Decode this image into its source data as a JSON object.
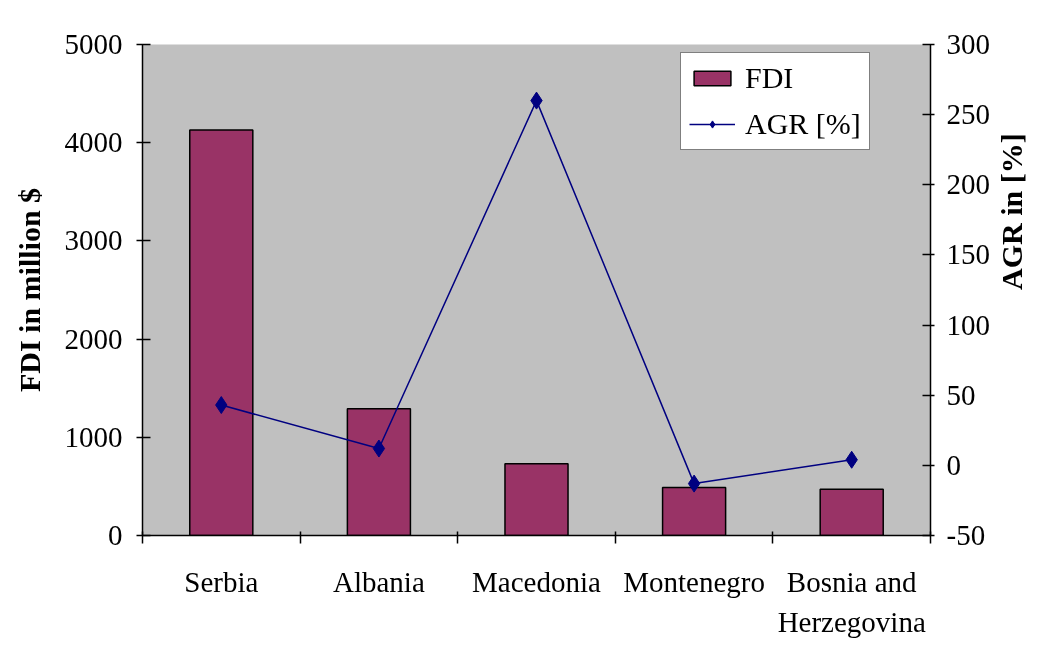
{
  "chart_data": {
    "type": "bar",
    "categories": [
      "Serbia",
      "Albania",
      "Macedonia",
      "Montenegro",
      "Bosnia and Herzegovina"
    ],
    "ylabel": "FDI in million $",
    "y2label": "AGR in [%]",
    "ylim": [
      0,
      5000
    ],
    "yticks": [
      0,
      1000,
      2000,
      3000,
      4000,
      5000
    ],
    "y2lim": [
      -50,
      300
    ],
    "y2ticks": [
      -50,
      0,
      50,
      100,
      150,
      200,
      250,
      300
    ],
    "series": [
      {
        "name": "FDI",
        "color": "#993366",
        "values": [
          4130,
          1290,
          730,
          490,
          470
        ]
      },
      {
        "name": "AGR [%]",
        "type": "line",
        "axis": "y2",
        "color": "#000080",
        "marker": "diamond",
        "values": [
          43,
          12,
          260,
          -13,
          4
        ]
      }
    ],
    "legend": "top right",
    "grid": false
  }
}
